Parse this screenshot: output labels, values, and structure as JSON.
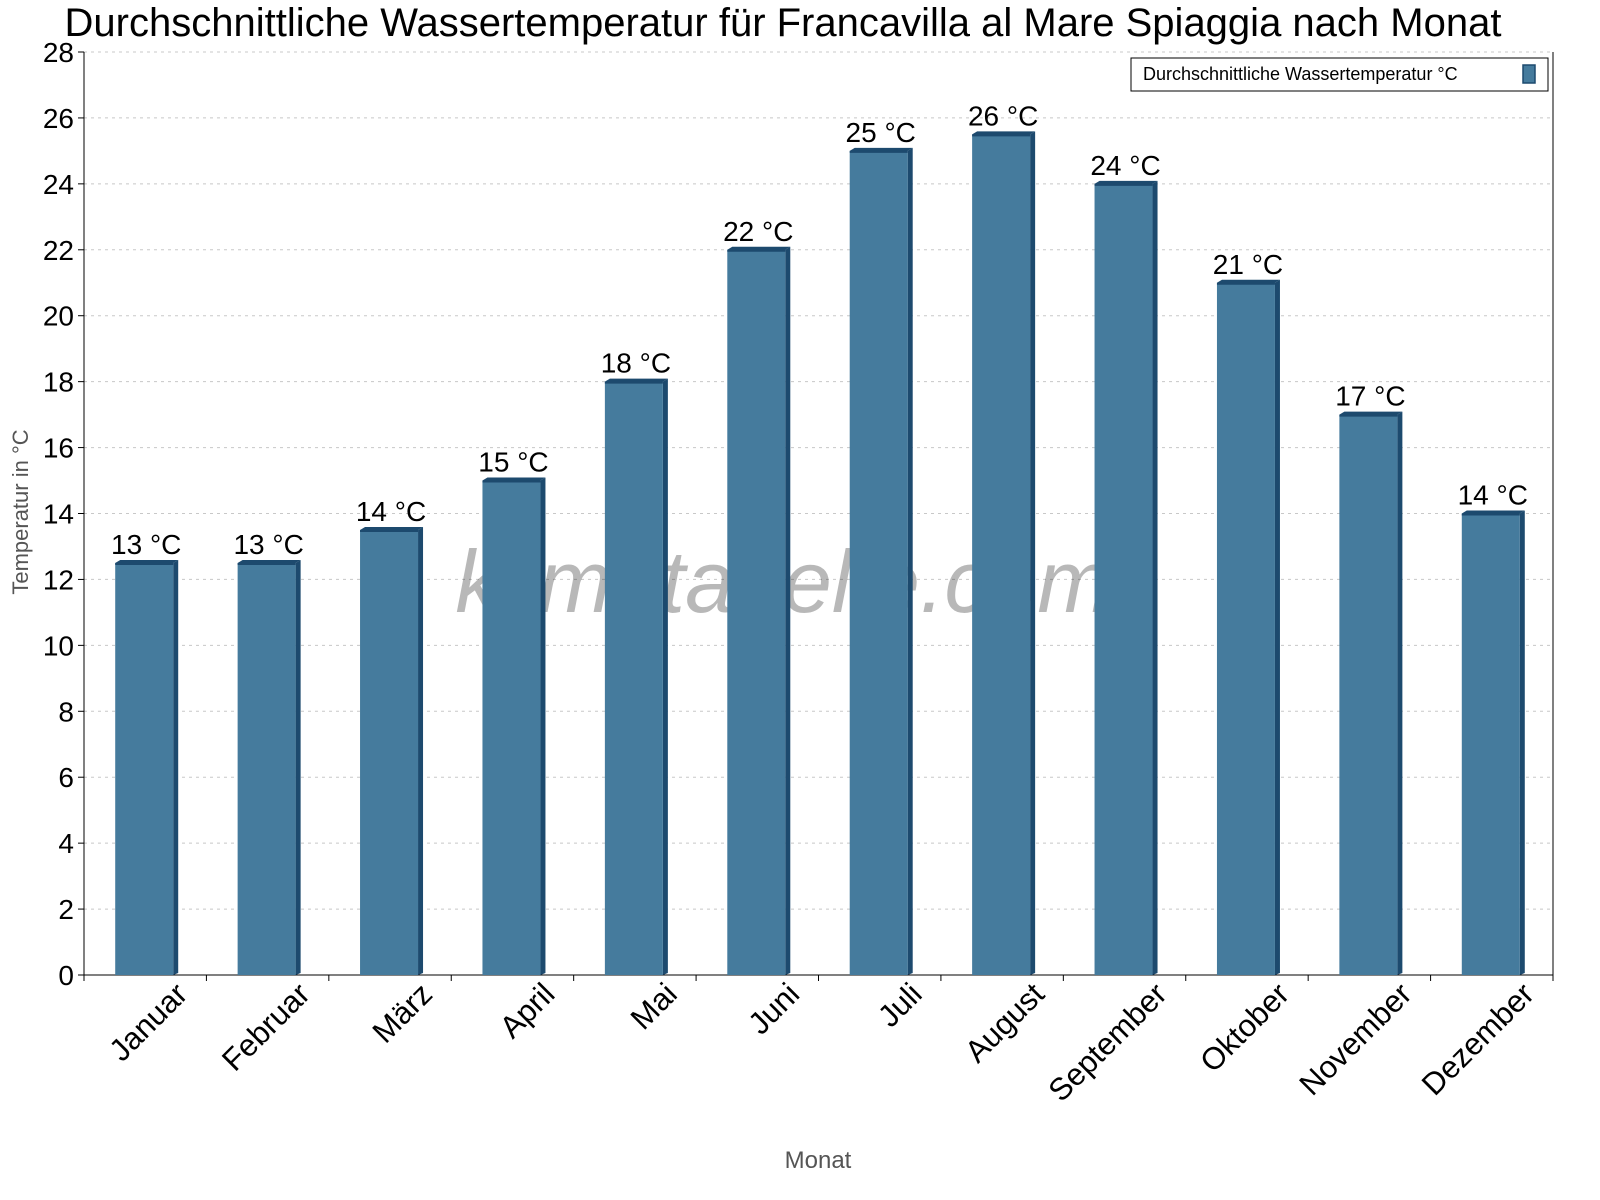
{
  "chart_data": {
    "type": "bar",
    "title": "Durchschnittliche Wassertemperatur für Francavilla al Mare Spiaggia nach Monat",
    "xlabel": "Monat",
    "ylabel": "Temperatur in °C",
    "ylim": [
      0,
      28
    ],
    "yticks": [
      0,
      2,
      4,
      6,
      8,
      10,
      12,
      14,
      16,
      18,
      20,
      22,
      24,
      26,
      28
    ],
    "grid": true,
    "legend_position": "top-right",
    "categories": [
      "Januar",
      "Februar",
      "März",
      "April",
      "Mai",
      "Juni",
      "Juli",
      "August",
      "September",
      "Oktober",
      "November",
      "Dezember"
    ],
    "series": [
      {
        "name": "Durchschnittliche Wassertemperatur °C",
        "color": "#457b9d",
        "side_color": "#1d4a6e",
        "values": [
          12.5,
          12.5,
          13.5,
          15,
          18,
          22,
          25,
          25.5,
          24,
          21,
          17,
          14
        ],
        "data_labels": [
          "13 °C",
          "13 °C",
          "14 °C",
          "15 °C",
          "18 °C",
          "22 °C",
          "25 °C",
          "26 °C",
          "24 °C",
          "21 °C",
          "17 °C",
          "14 °C"
        ]
      }
    ],
    "watermark": "klimatabelle.com"
  }
}
